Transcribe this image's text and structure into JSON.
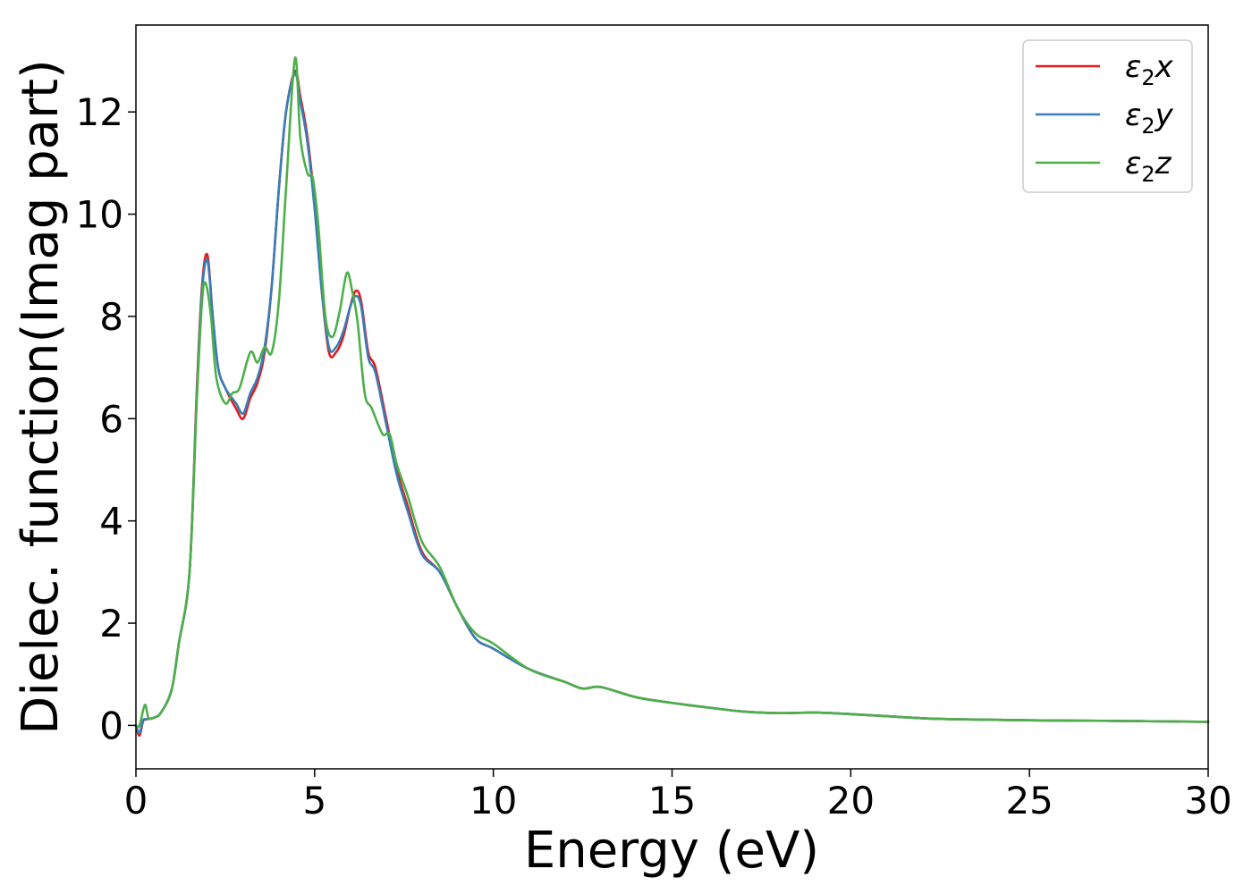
{
  "chart_data": {
    "type": "line",
    "xlabel": "Energy (eV)",
    "ylabel": "Dielec. function(Imag part)",
    "xlim": [
      0,
      30
    ],
    "ylim": [
      -0.85,
      13.7
    ],
    "xticks": [
      0,
      5,
      10,
      15,
      20,
      25,
      30
    ],
    "yticks": [
      0,
      2,
      4,
      6,
      8,
      10,
      12
    ],
    "grid": false,
    "legend_position": "top-right",
    "series": [
      {
        "name": "ε₂x",
        "legend": {
          "base": "ε",
          "sub": "2",
          "var": "x"
        },
        "color": "#e41a1c",
        "x": [
          0,
          0.1,
          0.2,
          0.3,
          0.5,
          0.7,
          1.0,
          1.2,
          1.5,
          1.7,
          1.85,
          2.0,
          2.15,
          2.3,
          2.5,
          2.8,
          3.0,
          3.2,
          3.4,
          3.6,
          3.8,
          4.0,
          4.2,
          4.45,
          4.6,
          4.8,
          5.0,
          5.2,
          5.4,
          5.6,
          5.8,
          6.0,
          6.15,
          6.3,
          6.5,
          6.7,
          7.0,
          7.3,
          7.6,
          8.0,
          8.5,
          9.0,
          9.5,
          10.0,
          11.0,
          12.0,
          12.5,
          13.0,
          14.0,
          15.0,
          16.0,
          17.0,
          18.0,
          19.0,
          20.0,
          21.0,
          22.0,
          23.0,
          25.0,
          27.0,
          30.0
        ],
        "values": [
          0,
          -0.2,
          0.08,
          0.12,
          0.15,
          0.25,
          0.7,
          1.6,
          3.0,
          6.5,
          8.6,
          9.2,
          8.0,
          7.0,
          6.6,
          6.2,
          6.0,
          6.4,
          6.7,
          7.3,
          8.6,
          10.5,
          12.0,
          12.8,
          12.3,
          11.5,
          10.2,
          8.5,
          7.3,
          7.3,
          7.6,
          8.2,
          8.5,
          8.3,
          7.3,
          7.0,
          6.0,
          5.0,
          4.3,
          3.4,
          3.0,
          2.3,
          1.7,
          1.5,
          1.1,
          0.85,
          0.72,
          0.75,
          0.55,
          0.44,
          0.35,
          0.27,
          0.24,
          0.25,
          0.22,
          0.18,
          0.14,
          0.12,
          0.1,
          0.09,
          0.07
        ]
      },
      {
        "name": "ε₂y",
        "legend": {
          "base": "ε",
          "sub": "2",
          "var": "y"
        },
        "color": "#377eb8",
        "x": [
          0,
          0.1,
          0.2,
          0.3,
          0.5,
          0.7,
          1.0,
          1.2,
          1.5,
          1.7,
          1.85,
          2.0,
          2.15,
          2.3,
          2.5,
          2.8,
          3.0,
          3.2,
          3.4,
          3.6,
          3.8,
          4.0,
          4.2,
          4.45,
          4.6,
          4.8,
          5.0,
          5.2,
          5.4,
          5.6,
          5.8,
          6.0,
          6.15,
          6.3,
          6.5,
          6.7,
          7.0,
          7.3,
          7.6,
          8.0,
          8.5,
          9.0,
          9.5,
          10.0,
          11.0,
          12.0,
          12.5,
          13.0,
          14.0,
          15.0,
          16.0,
          17.0,
          18.0,
          19.0,
          20.0,
          21.0,
          22.0,
          23.0,
          25.0,
          27.0,
          30.0
        ],
        "values": [
          0,
          -0.15,
          0.1,
          0.12,
          0.15,
          0.25,
          0.7,
          1.6,
          3.0,
          6.4,
          8.5,
          9.1,
          8.0,
          7.0,
          6.6,
          6.3,
          6.1,
          6.5,
          6.8,
          7.4,
          8.6,
          10.5,
          12.0,
          12.75,
          12.2,
          11.4,
          10.1,
          8.5,
          7.4,
          7.4,
          7.7,
          8.2,
          8.4,
          8.2,
          7.2,
          6.9,
          5.9,
          4.9,
          4.2,
          3.35,
          3.0,
          2.3,
          1.7,
          1.5,
          1.1,
          0.85,
          0.72,
          0.75,
          0.55,
          0.44,
          0.35,
          0.27,
          0.24,
          0.25,
          0.22,
          0.18,
          0.14,
          0.12,
          0.1,
          0.09,
          0.07
        ]
      },
      {
        "name": "ε₂z",
        "legend": {
          "base": "ε",
          "sub": "2",
          "var": "z"
        },
        "color": "#4daf4a",
        "x": [
          0,
          0.1,
          0.25,
          0.35,
          0.5,
          0.7,
          1.0,
          1.2,
          1.5,
          1.7,
          1.85,
          1.95,
          2.1,
          2.25,
          2.5,
          2.7,
          2.9,
          3.2,
          3.4,
          3.6,
          3.8,
          4.0,
          4.2,
          4.45,
          4.6,
          4.8,
          4.95,
          5.1,
          5.3,
          5.5,
          5.7,
          5.9,
          6.05,
          6.2,
          6.4,
          6.6,
          6.9,
          7.1,
          7.3,
          7.6,
          8.0,
          8.5,
          9.0,
          9.5,
          10.0,
          11.0,
          12.0,
          12.5,
          13.0,
          14.0,
          15.0,
          16.0,
          17.0,
          18.0,
          19.0,
          20.0,
          21.0,
          22.0,
          23.0,
          25.0,
          27.0,
          30.0
        ],
        "values": [
          0,
          0.0,
          0.4,
          0.15,
          0.15,
          0.25,
          0.7,
          1.6,
          3.0,
          6.3,
          8.3,
          8.65,
          8.0,
          6.8,
          6.3,
          6.5,
          6.6,
          7.3,
          7.1,
          7.4,
          7.3,
          8.3,
          10.5,
          13.05,
          11.5,
          10.8,
          10.7,
          9.8,
          8.0,
          7.6,
          8.1,
          8.85,
          8.5,
          7.9,
          6.5,
          6.2,
          5.7,
          5.7,
          5.1,
          4.5,
          3.6,
          3.1,
          2.3,
          1.8,
          1.6,
          1.1,
          0.85,
          0.72,
          0.75,
          0.55,
          0.44,
          0.35,
          0.27,
          0.24,
          0.25,
          0.22,
          0.18,
          0.14,
          0.12,
          0.1,
          0.09,
          0.07
        ]
      }
    ]
  }
}
